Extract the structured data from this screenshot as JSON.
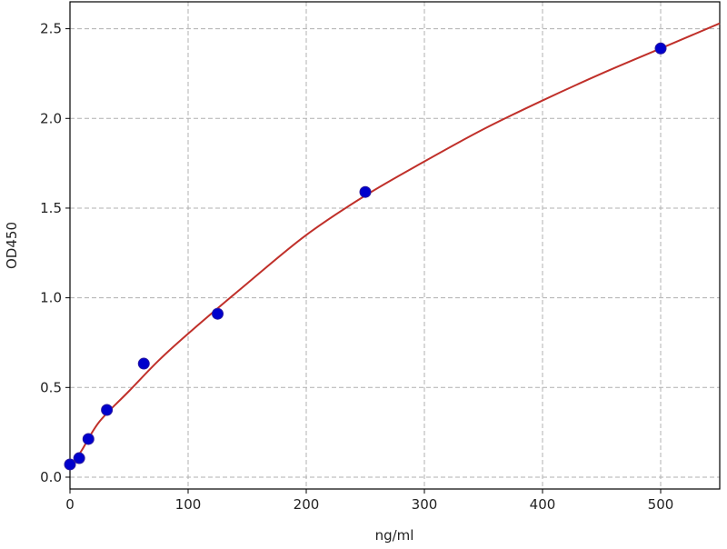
{
  "chart_data": {
    "type": "scatter",
    "title": "",
    "xlabel": "ng/ml",
    "ylabel": "OD450",
    "xlim": [
      0,
      550
    ],
    "ylim": [
      -0.066,
      2.65
    ],
    "xticks": [
      0,
      100,
      200,
      300,
      400,
      500
    ],
    "xtick_labels": [
      "0",
      "100",
      "200",
      "300",
      "400",
      "500"
    ],
    "yticks": [
      0.0,
      0.5,
      1.0,
      1.5,
      2.0,
      2.5
    ],
    "ytick_labels": [
      "0.0",
      "0.5",
      "1.0",
      "1.5",
      "2.0",
      "2.5"
    ],
    "grid": true,
    "series": [
      {
        "kind": "points",
        "color": "#0000cc",
        "x": [
          0,
          7.8,
          15.6,
          31.25,
          62.5,
          125,
          250,
          500
        ],
        "y": [
          0.071,
          0.106,
          0.213,
          0.375,
          0.633,
          0.911,
          1.59,
          2.39
        ]
      },
      {
        "kind": "fit-curve",
        "color": "#c0302a",
        "x": [
          0,
          10,
          25,
          50,
          75,
          100,
          150,
          200,
          250,
          300,
          350,
          400,
          450,
          500,
          550
        ],
        "y": [
          0.05,
          0.15,
          0.31,
          0.48,
          0.65,
          0.8,
          1.08,
          1.35,
          1.57,
          1.76,
          1.94,
          2.1,
          2.25,
          2.39,
          2.53
        ]
      }
    ]
  }
}
